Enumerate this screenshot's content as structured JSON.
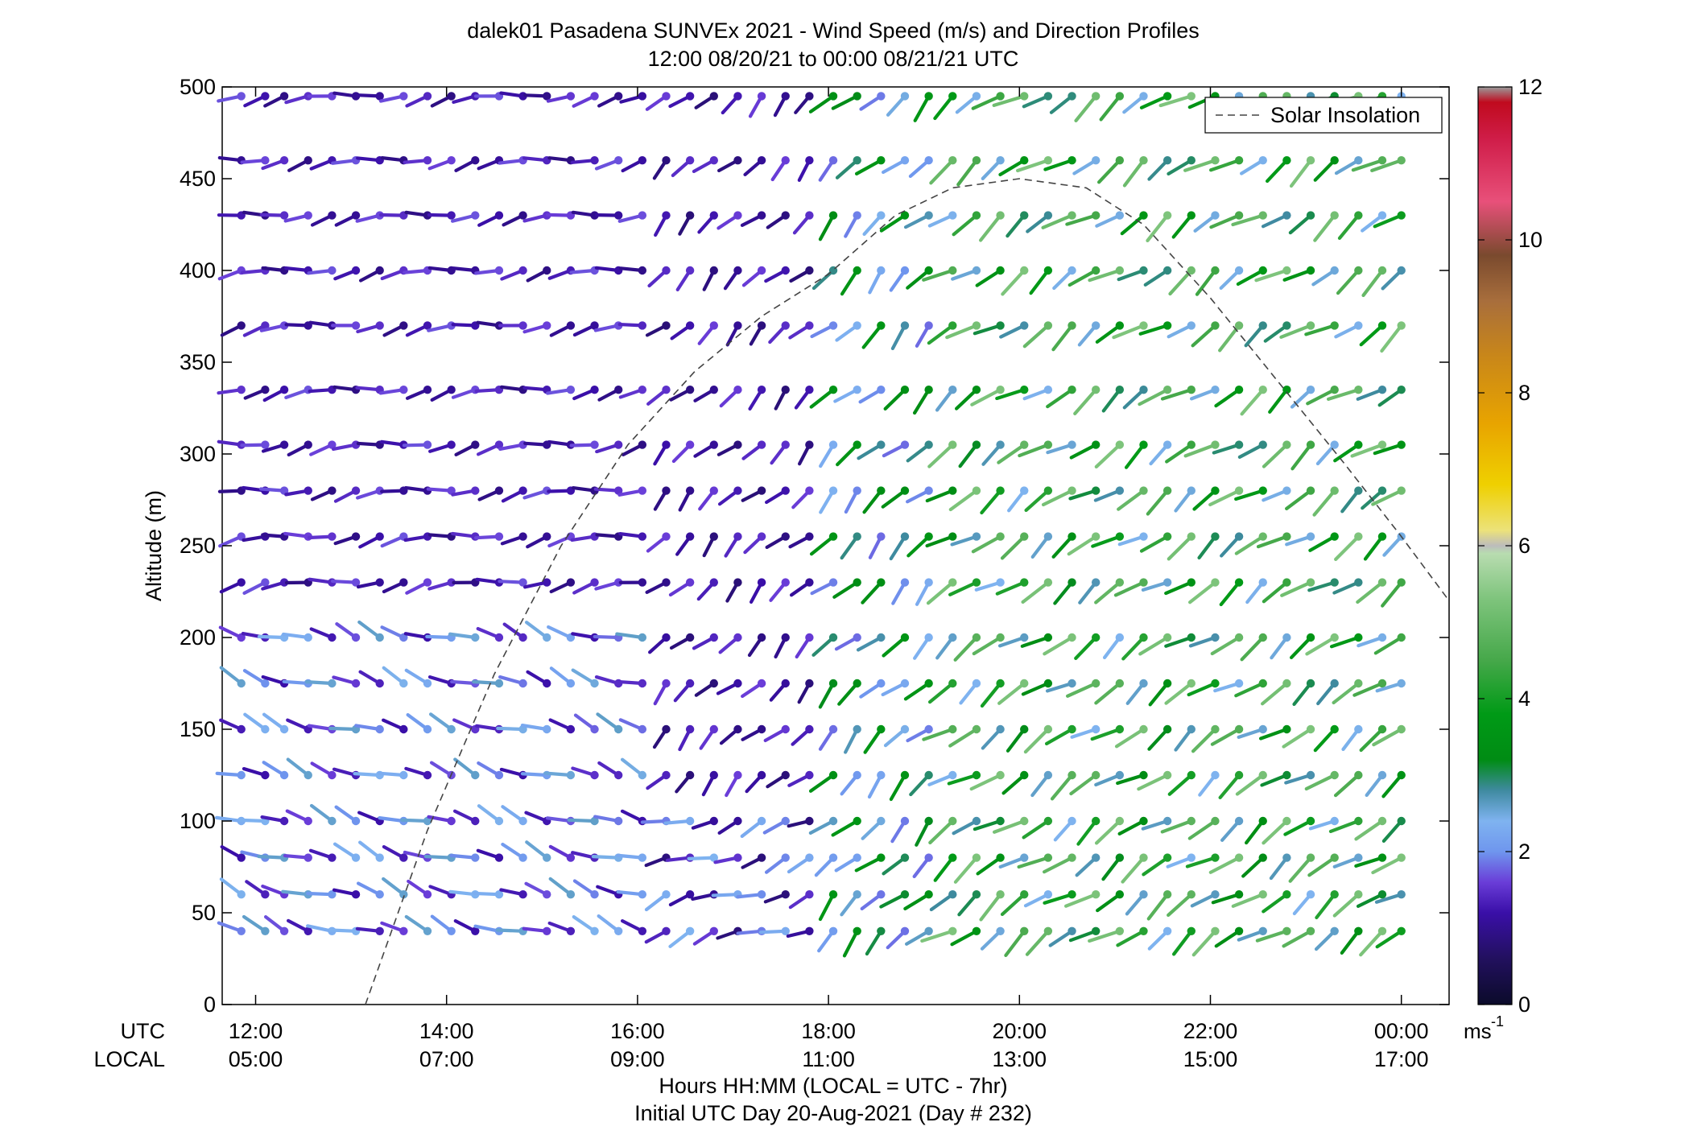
{
  "chart_data": {
    "type": "wind-barb profile",
    "title": "dalek01 Pasadena SUNVEx 2021 - Wind Speed (m/s) and Direction Profiles",
    "subtitle": "12:00 08/20/21 to 00:00 08/21/21  UTC",
    "ylabel": "Altitude (m)",
    "ylim": [
      0,
      500
    ],
    "yticks": [
      "0",
      "50",
      "100",
      "150",
      "200",
      "250",
      "300",
      "350",
      "400",
      "450",
      "500"
    ],
    "xlim_hours_utc": [
      11.65,
      24.5
    ],
    "xticks_utc": [
      "12:00",
      "14:00",
      "16:00",
      "18:00",
      "20:00",
      "22:00",
      "00:00"
    ],
    "xticks_local": [
      "05:00",
      "07:00",
      "09:00",
      "11:00",
      "13:00",
      "15:00",
      "17:00"
    ],
    "xtick_hours_utc": [
      12,
      14,
      16,
      18,
      20,
      22,
      24
    ],
    "row_label_utc": "UTC",
    "row_label_local": "LOCAL",
    "xlabel": "Hours HH:MM  (LOCAL = UTC - 7hr)",
    "xlabel2": "Initial UTC Day 20-Aug-2021 (Day # 232)",
    "legend": {
      "label": "Solar Insolation",
      "placement": "top-right"
    },
    "colorbar": {
      "min": 0,
      "max": 12,
      "ticks": [
        "0",
        "2",
        "4",
        "6",
        "8",
        "10",
        "12"
      ],
      "unit_label": "ms",
      "unit_exp": "-1",
      "stops": [
        {
          "v": 0.0,
          "c": "#0b0b2a"
        },
        {
          "v": 0.6,
          "c": "#22105e"
        },
        {
          "v": 1.2,
          "c": "#3a0fa8"
        },
        {
          "v": 1.6,
          "c": "#6a3dd8"
        },
        {
          "v": 2.0,
          "c": "#6f96ee"
        },
        {
          "v": 2.4,
          "c": "#7fb3f0"
        },
        {
          "v": 2.8,
          "c": "#3f8aa0"
        },
        {
          "v": 3.2,
          "c": "#008c14"
        },
        {
          "v": 3.8,
          "c": "#009a16"
        },
        {
          "v": 4.5,
          "c": "#46a84a"
        },
        {
          "v": 5.3,
          "c": "#7ec47c"
        },
        {
          "v": 5.9,
          "c": "#b8dcb0"
        },
        {
          "v": 6.0,
          "c": "#bcbcbc"
        },
        {
          "v": 6.2,
          "c": "#ece27a"
        },
        {
          "v": 6.8,
          "c": "#efd000"
        },
        {
          "v": 7.6,
          "c": "#e8a400"
        },
        {
          "v": 8.5,
          "c": "#c8861a"
        },
        {
          "v": 9.2,
          "c": "#a86e3c"
        },
        {
          "v": 9.8,
          "c": "#7a4a2e"
        },
        {
          "v": 10.5,
          "c": "#e8507a"
        },
        {
          "v": 11.3,
          "c": "#d01e4a"
        },
        {
          "v": 11.8,
          "c": "#c00a1e"
        },
        {
          "v": 12.0,
          "c": "#9a9a9a"
        }
      ]
    },
    "solar_insolation_curve": {
      "hours_utc": [
        13.15,
        13.8,
        14.5,
        15.2,
        15.9,
        16.6,
        17.3,
        18.0,
        18.7,
        19.3,
        20.0,
        20.7,
        21.3,
        22.0,
        22.7,
        23.4,
        24.0,
        24.5
      ],
      "altitude_m": [
        0,
        95,
        180,
        250,
        305,
        345,
        375,
        398,
        430,
        445,
        450,
        445,
        425,
        385,
        340,
        295,
        255,
        220
      ]
    },
    "altitude_levels_m": [
      40,
      60,
      80,
      100,
      125,
      150,
      175,
      200,
      230,
      255,
      280,
      305,
      335,
      370,
      400,
      430,
      460,
      495
    ],
    "time_columns_hours_utc": [
      11.85,
      12.1,
      12.3,
      12.55,
      12.8,
      13.05,
      13.3,
      13.55,
      13.8,
      14.05,
      14.3,
      14.55,
      14.8,
      15.05,
      15.3,
      15.55,
      15.8,
      16.05,
      16.3,
      16.55,
      16.8,
      17.05,
      17.3,
      17.55,
      17.8,
      18.05,
      18.3,
      18.55,
      18.8,
      19.05,
      19.3,
      19.55,
      19.8,
      20.05,
      20.3,
      20.55,
      20.8,
      21.05,
      21.3,
      21.55,
      21.8,
      22.05,
      22.3,
      22.55,
      22.8,
      23.05,
      23.3,
      23.55,
      23.8,
      24.0
    ],
    "wind_regimes": [
      {
        "hours_utc": [
          11.85,
          16.1
        ],
        "altitude_m": [
          230,
          500
        ],
        "speed_ms": [
          0.9,
          1.7
        ],
        "direction_deg": 260
      },
      {
        "hours_utc": [
          11.85,
          16.1
        ],
        "altitude_m": [
          40,
          230
        ],
        "speed_ms": [
          1.2,
          2.6
        ],
        "direction_deg": 290
      },
      {
        "hours_utc": [
          16.1,
          18.0
        ],
        "altitude_m": [
          40,
          120
        ],
        "speed_ms": [
          0.8,
          2.4
        ],
        "direction_deg": 250
      },
      {
        "hours_utc": [
          16.1,
          18.0
        ],
        "altitude_m": [
          120,
          500
        ],
        "speed_ms": [
          0.8,
          1.6
        ],
        "direction_deg": 225
      },
      {
        "hours_utc": [
          18.0,
          19.2
        ],
        "altitude_m": [
          40,
          500
        ],
        "speed_ms": [
          1.8,
          3.6
        ],
        "direction_deg": 225
      },
      {
        "hours_utc": [
          19.2,
          24.0
        ],
        "altitude_m": [
          40,
          500
        ],
        "speed_ms": [
          2.4,
          5.3
        ],
        "direction_deg": 235
      }
    ]
  }
}
